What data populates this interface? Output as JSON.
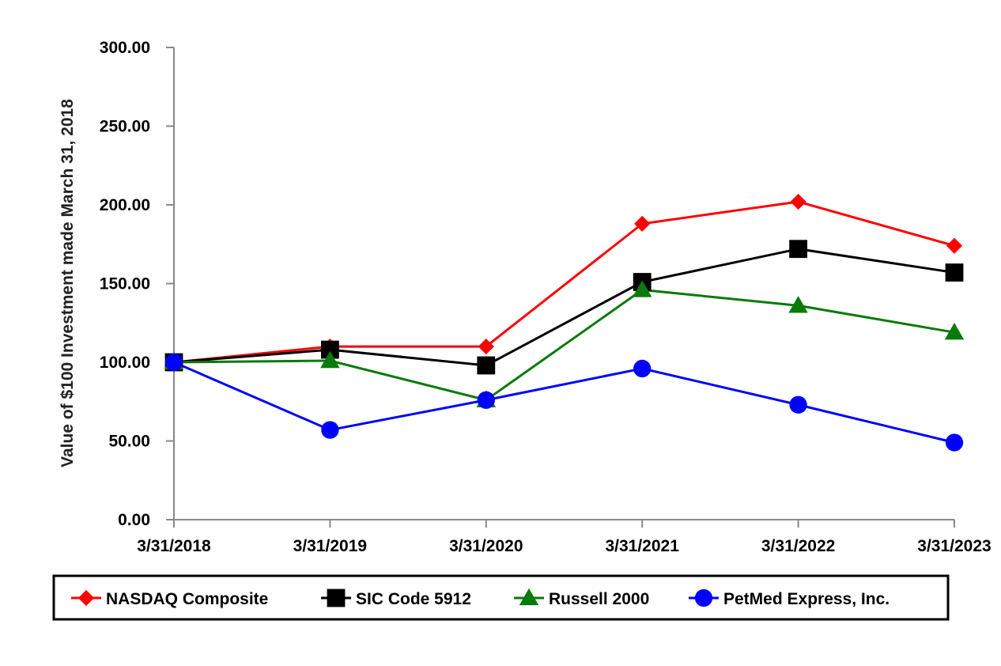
{
  "chart_data": {
    "type": "line",
    "title": "",
    "xlabel": "",
    "ylabel": "Value of $100 Investment made March 31, 2018",
    "categories": [
      "3/31/2018",
      "3/31/2019",
      "3/31/2020",
      "3/31/2021",
      "3/31/2022",
      "3/31/2023"
    ],
    "ylim": [
      0,
      300
    ],
    "yticks": [
      "0.00",
      "50.00",
      "100.00",
      "150.00",
      "200.00",
      "250.00",
      "300.00"
    ],
    "grid": false,
    "legend_position": "bottom",
    "series": [
      {
        "name": "NASDAQ Composite",
        "color": "#ff0000",
        "marker": "diamond",
        "values": [
          100,
          110,
          110,
          188,
          202,
          174
        ]
      },
      {
        "name": "SIC Code 5912",
        "color": "#000000",
        "marker": "square",
        "values": [
          100,
          108,
          98,
          151,
          172,
          157
        ]
      },
      {
        "name": "Russell 2000",
        "color": "#0a7a0a",
        "marker": "triangle",
        "values": [
          100,
          101,
          76,
          146,
          136,
          119
        ]
      },
      {
        "name": "PetMed Express, Inc.",
        "color": "#0000ff",
        "marker": "circle",
        "values": [
          100,
          57,
          76,
          96,
          73,
          49
        ]
      }
    ]
  }
}
